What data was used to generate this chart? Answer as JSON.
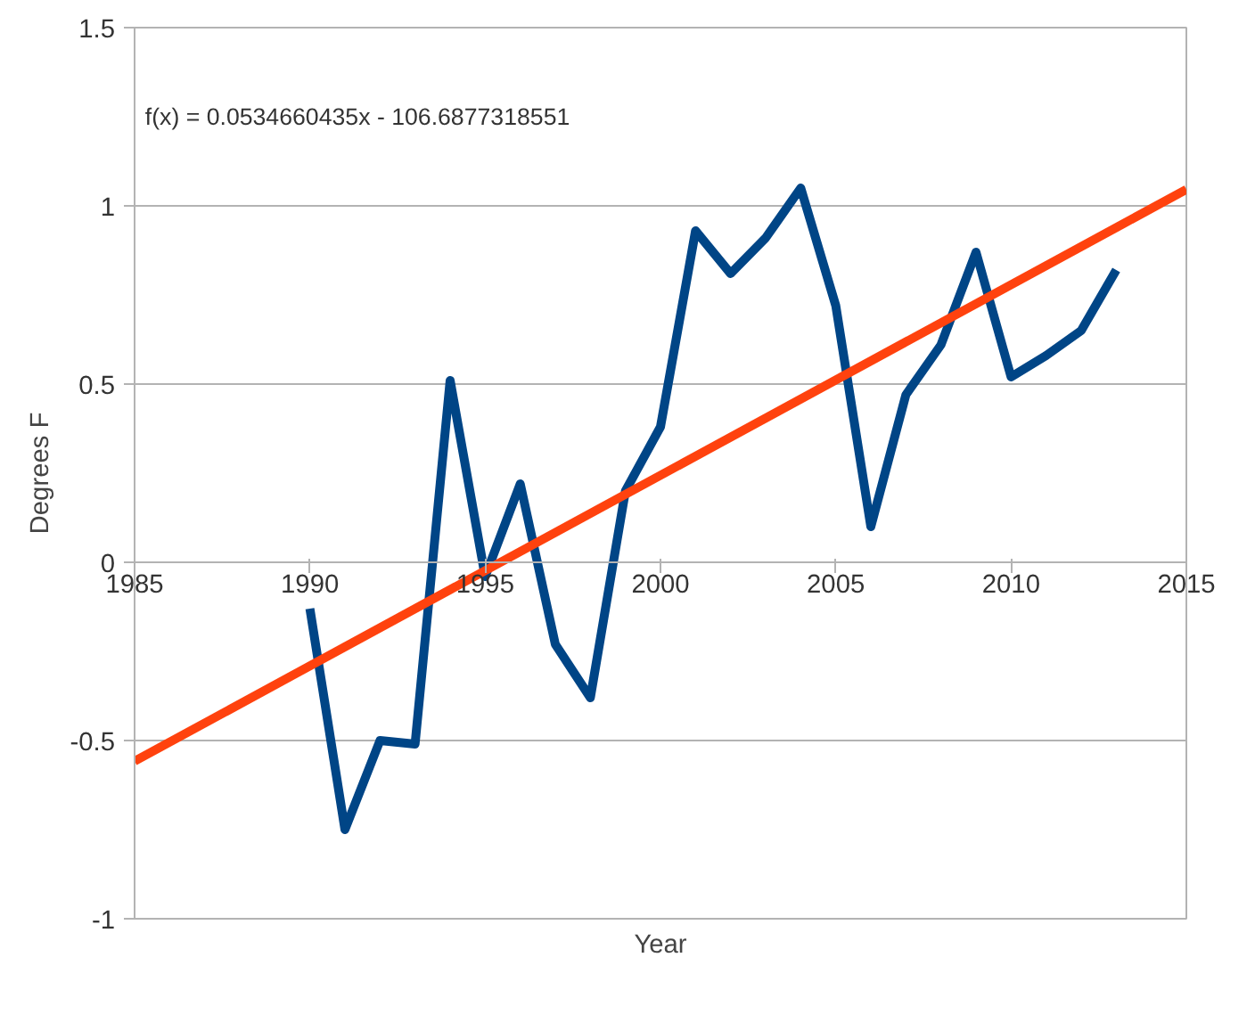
{
  "chart_data": {
    "type": "line",
    "xlabel": "Year",
    "ylabel": "Degrees F",
    "annotations": [
      "f(x) = 0.0534660435x - 106.6877318551"
    ],
    "xlim": [
      1985,
      2015
    ],
    "xticks": [
      1985,
      1990,
      1995,
      2000,
      2005,
      2010,
      2015
    ],
    "ylim": [
      -1,
      1.5
    ],
    "yticks": [
      -1,
      -0.5,
      0,
      0.5,
      1,
      1.5
    ],
    "grid": "y",
    "marker": "none",
    "line_style": "solid",
    "series": [
      {
        "color": "#004586",
        "x": [
          1990,
          1991,
          1992,
          1993,
          1994,
          1995,
          1996,
          1997,
          1998,
          1999,
          2000,
          2001,
          2002,
          2003,
          2004,
          2005,
          2006,
          2007,
          2008,
          2009,
          2010,
          2011,
          2012,
          2013
        ],
        "values": [
          -0.13,
          -0.75,
          -0.5,
          -0.51,
          0.51,
          -0.04,
          0.22,
          -0.23,
          -0.38,
          0.2,
          0.38,
          0.93,
          0.81,
          0.91,
          1.05,
          0.72,
          0.1,
          0.47,
          0.61,
          0.87,
          0.52,
          0.58,
          0.65,
          0.82
        ]
      },
      {
        "color": "#ff420e",
        "x": [
          1985,
          2015
        ],
        "values": [
          -0.558,
          1.046
        ]
      }
    ]
  }
}
